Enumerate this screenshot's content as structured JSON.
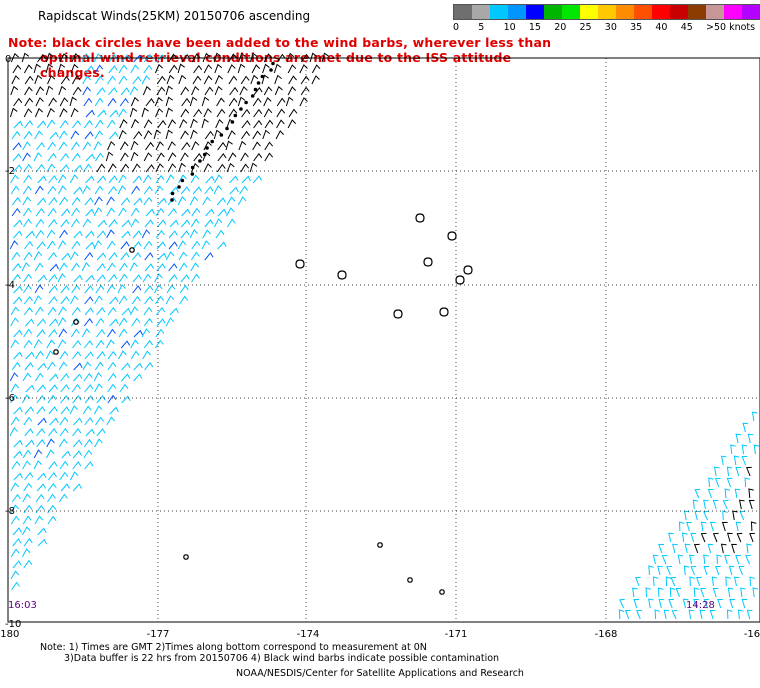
{
  "header": {
    "title": "Rapidscat Winds(25KM) 20150706 ascending",
    "note_line1": "Note: black circles have been added to the wind barbs, wherever less than",
    "note_line2": "optimal wind retrieval conditions are met due to the ISS attitude changes."
  },
  "legend": {
    "unit": "knots",
    "colors": [
      "#6e6e6e",
      "#a8a8a8",
      "#00c8ff",
      "#0096ff",
      "#0000ff",
      "#00b400",
      "#00e600",
      "#ffff00",
      "#ffc800",
      "#ff8c00",
      "#ff5000",
      "#ff0000",
      "#c80000",
      "#8c3c00",
      "#c89696",
      "#ff00ff",
      "#b400ff",
      "#6400c8"
    ],
    "labels": [
      "0",
      "5",
      "10",
      "15",
      "20",
      "25",
      "30",
      "35",
      "40",
      "45",
      ">50 knots"
    ]
  },
  "axes": {
    "x_ticks": [
      "-180",
      "-177",
      "-174",
      "-171",
      "-168",
      "-16"
    ],
    "y_ticks": [
      "0",
      "-2",
      "-4",
      "-6",
      "-8",
      "-10"
    ]
  },
  "times": {
    "left": "16:03",
    "right": "14:28"
  },
  "footer": {
    "line1": "Note: 1) Times are GMT 2)Times along bottom correspond to measurement at 0N",
    "line2": "3)Data buffer is 22 hrs from 20150706 4) Black wind barbs indicate possible contamination",
    "line3": "NOAA/NESDIS/Center for Satellite Applications and Research"
  },
  "colors": {
    "barb_cyan": "#00c8ff",
    "barb_blue": "#0050ff",
    "barb_black": "#000000",
    "note": "#e00000"
  }
}
